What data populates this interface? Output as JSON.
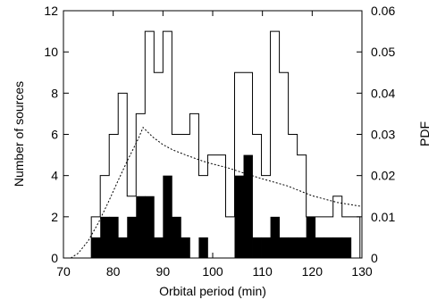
{
  "chart_data": {
    "type": "bar",
    "xlabel": "Orbital period (min)",
    "ylabel": "Number of sources",
    "y2label": "PDF",
    "xlim": [
      70,
      130
    ],
    "ylim": [
      0,
      12
    ],
    "y2lim": [
      0,
      0.06
    ],
    "x_ticks": [
      "70",
      "80",
      "90",
      "100",
      "110",
      "120",
      "130"
    ],
    "y_ticks": [
      "0",
      "2",
      "4",
      "6",
      "8",
      "10",
      "12"
    ],
    "y2_ticks": [
      "0",
      "0.01",
      "0.02",
      "0.03",
      "0.04",
      "0.05",
      "0.06"
    ],
    "bin_width": 1.8,
    "series": [
      {
        "style": "outline histogram",
        "bins": [
          {
            "x0": 75.6,
            "value": 2
          },
          {
            "x0": 77.4,
            "value": 4
          },
          {
            "x0": 79.2,
            "value": 6
          },
          {
            "x0": 81.0,
            "value": 8
          },
          {
            "x0": 82.8,
            "value": 3
          },
          {
            "x0": 84.6,
            "value": 7
          },
          {
            "x0": 86.4,
            "value": 11
          },
          {
            "x0": 88.2,
            "value": 9
          },
          {
            "x0": 90.0,
            "value": 11
          },
          {
            "x0": 91.8,
            "value": 6
          },
          {
            "x0": 93.6,
            "value": 6
          },
          {
            "x0": 95.4,
            "value": 7
          },
          {
            "x0": 97.2,
            "value": 4
          },
          {
            "x0": 99.0,
            "value": 5
          },
          {
            "x0": 100.8,
            "value": 5
          },
          {
            "x0": 102.6,
            "value": 2
          },
          {
            "x0": 104.4,
            "value": 9
          },
          {
            "x0": 106.2,
            "value": 9
          },
          {
            "x0": 108.0,
            "value": 6
          },
          {
            "x0": 109.8,
            "value": 4
          },
          {
            "x0": 111.6,
            "value": 11
          },
          {
            "x0": 113.4,
            "value": 9
          },
          {
            "x0": 115.2,
            "value": 6
          },
          {
            "x0": 117.0,
            "value": 5
          },
          {
            "x0": 118.8,
            "value": 2
          },
          {
            "x0": 120.6,
            "value": 2
          },
          {
            "x0": 122.4,
            "value": 2
          },
          {
            "x0": 124.2,
            "value": 3
          },
          {
            "x0": 126.0,
            "value": 2
          },
          {
            "x0": 127.8,
            "value": 2
          }
        ]
      },
      {
        "style": "filled histogram",
        "bins": [
          {
            "x0": 75.6,
            "value": 1
          },
          {
            "x0": 77.4,
            "value": 2
          },
          {
            "x0": 79.2,
            "value": 2
          },
          {
            "x0": 81.0,
            "value": 1
          },
          {
            "x0": 82.8,
            "value": 2
          },
          {
            "x0": 84.6,
            "value": 3
          },
          {
            "x0": 86.4,
            "value": 3
          },
          {
            "x0": 88.2,
            "value": 1
          },
          {
            "x0": 90.0,
            "value": 4
          },
          {
            "x0": 91.8,
            "value": 2
          },
          {
            "x0": 93.6,
            "value": 1
          },
          {
            "x0": 97.2,
            "value": 1
          },
          {
            "x0": 104.4,
            "value": 4
          },
          {
            "x0": 106.2,
            "value": 5
          },
          {
            "x0": 108.0,
            "value": 1
          },
          {
            "x0": 109.8,
            "value": 1
          },
          {
            "x0": 111.6,
            "value": 2
          },
          {
            "x0": 113.4,
            "value": 1
          },
          {
            "x0": 115.2,
            "value": 1
          },
          {
            "x0": 117.0,
            "value": 1
          },
          {
            "x0": 118.8,
            "value": 2
          },
          {
            "x0": 120.6,
            "value": 1
          },
          {
            "x0": 122.4,
            "value": 1
          },
          {
            "x0": 124.2,
            "value": 1
          },
          {
            "x0": 126.0,
            "value": 1
          }
        ]
      },
      {
        "style": "dotted curve",
        "axis": "right",
        "points": [
          [
            71.5,
            0.0
          ],
          [
            73,
            0.0012
          ],
          [
            75,
            0.0042
          ],
          [
            77,
            0.0085
          ],
          [
            79,
            0.0135
          ],
          [
            81,
            0.0188
          ],
          [
            83,
            0.024
          ],
          [
            85,
            0.0288
          ],
          [
            86,
            0.0317
          ],
          [
            87,
            0.0305
          ],
          [
            88,
            0.0293
          ],
          [
            90,
            0.0275
          ],
          [
            92,
            0.0262
          ],
          [
            95,
            0.0248
          ],
          [
            98,
            0.0235
          ],
          [
            100,
            0.0228
          ],
          [
            103,
            0.0219
          ],
          [
            106,
            0.0207
          ],
          [
            110,
            0.0192
          ],
          [
            115,
            0.0175
          ],
          [
            120,
            0.0151
          ],
          [
            125,
            0.0135
          ],
          [
            130,
            0.0125
          ]
        ]
      }
    ]
  }
}
